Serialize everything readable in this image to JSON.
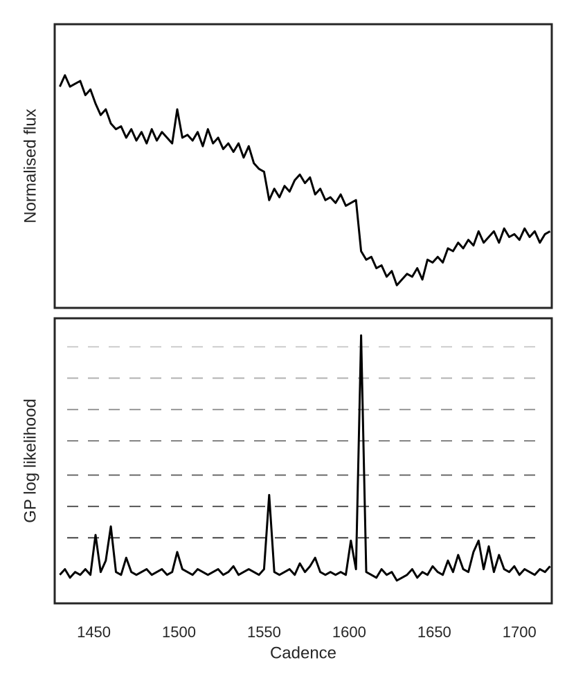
{
  "chart_data": [
    {
      "type": "line",
      "ylabel": "Normalised flux",
      "xlim": [
        1427,
        1719
      ],
      "ylim": [
        0,
        100
      ],
      "color": "#000000",
      "x": [
        1430,
        1433,
        1436,
        1439,
        1442,
        1445,
        1448,
        1451,
        1454,
        1457,
        1460,
        1463,
        1466,
        1469,
        1472,
        1475,
        1478,
        1481,
        1484,
        1487,
        1490,
        1493,
        1496,
        1499,
        1502,
        1505,
        1508,
        1511,
        1514,
        1517,
        1520,
        1523,
        1526,
        1529,
        1532,
        1535,
        1538,
        1541,
        1544,
        1547,
        1550,
        1553,
        1556,
        1559,
        1562,
        1565,
        1568,
        1571,
        1574,
        1577,
        1580,
        1583,
        1586,
        1589,
        1592,
        1595,
        1598,
        1601,
        1604,
        1607,
        1610,
        1613,
        1616,
        1619,
        1622,
        1625,
        1628,
        1631,
        1634,
        1637,
        1640,
        1643,
        1646,
        1649,
        1652,
        1655,
        1658,
        1661,
        1664,
        1667,
        1670,
        1673,
        1676,
        1679,
        1682,
        1685,
        1688,
        1691,
        1694,
        1697,
        1700,
        1703,
        1706,
        1709,
        1712,
        1715,
        1718
      ],
      "values": [
        78,
        82,
        78,
        79,
        80,
        75,
        77,
        72,
        68,
        70,
        65,
        63,
        64,
        60,
        63,
        59,
        62,
        58,
        63,
        59,
        62,
        60,
        58,
        70,
        60,
        61,
        59,
        62,
        57,
        63,
        58,
        60,
        56,
        58,
        55,
        58,
        53,
        57,
        51,
        49,
        48,
        38,
        42,
        39,
        43,
        41,
        45,
        47,
        44,
        46,
        40,
        42,
        38,
        39,
        37,
        40,
        36,
        37,
        38,
        20,
        17,
        18,
        14,
        15,
        11,
        13,
        8,
        10,
        12,
        11,
        14,
        10,
        17,
        16,
        18,
        16,
        21,
        20,
        23,
        21,
        24,
        22,
        27,
        23,
        25,
        27,
        23,
        28,
        25,
        26,
        24,
        28,
        25,
        27,
        23,
        26,
        27
      ]
    },
    {
      "type": "line",
      "ylabel": "GP log likelihood",
      "xlabel": "Cadence",
      "xlim": [
        1427,
        1719
      ],
      "ylim": [
        0,
        100
      ],
      "color": "#000000",
      "xticks": [
        1450,
        1500,
        1550,
        1600,
        1650,
        1700
      ],
      "hlines": [
        {
          "value": 23,
          "color": "#444444"
        },
        {
          "value": 34,
          "color": "#555555"
        },
        {
          "value": 45,
          "color": "#6a6a6a"
        },
        {
          "value": 57,
          "color": "#808080"
        },
        {
          "value": 68,
          "color": "#979797"
        },
        {
          "value": 79,
          "color": "#b0b0b0"
        },
        {
          "value": 90,
          "color": "#cccccc"
        }
      ],
      "x": [
        1430,
        1433,
        1436,
        1439,
        1442,
        1445,
        1448,
        1451,
        1454,
        1457,
        1460,
        1463,
        1466,
        1469,
        1472,
        1475,
        1478,
        1481,
        1484,
        1487,
        1490,
        1493,
        1496,
        1499,
        1502,
        1505,
        1508,
        1511,
        1514,
        1517,
        1520,
        1523,
        1526,
        1529,
        1532,
        1535,
        1538,
        1541,
        1544,
        1547,
        1550,
        1553,
        1556,
        1559,
        1562,
        1565,
        1568,
        1571,
        1574,
        1577,
        1580,
        1583,
        1586,
        1589,
        1592,
        1595,
        1598,
        1601,
        1604,
        1607,
        1610,
        1613,
        1616,
        1619,
        1622,
        1625,
        1628,
        1631,
        1634,
        1637,
        1640,
        1643,
        1646,
        1649,
        1652,
        1655,
        1658,
        1661,
        1664,
        1667,
        1670,
        1673,
        1676,
        1679,
        1682,
        1685,
        1688,
        1691,
        1694,
        1697,
        1700,
        1703,
        1706,
        1709,
        1712,
        1715,
        1718
      ],
      "values": [
        10,
        12,
        9,
        11,
        10,
        12,
        10,
        24,
        11,
        15,
        27,
        11,
        10,
        16,
        11,
        10,
        11,
        12,
        10,
        11,
        12,
        10,
        11,
        18,
        12,
        11,
        10,
        12,
        11,
        10,
        11,
        12,
        10,
        11,
        13,
        10,
        11,
        12,
        11,
        10,
        12,
        38,
        11,
        10,
        11,
        12,
        10,
        14,
        11,
        13,
        16,
        11,
        10,
        11,
        10,
        11,
        10,
        22,
        12,
        94,
        11,
        10,
        9,
        12,
        10,
        11,
        8,
        9,
        10,
        12,
        9,
        11,
        10,
        13,
        11,
        10,
        15,
        11,
        17,
        12,
        11,
        18,
        22,
        12,
        20,
        11,
        17,
        12,
        11,
        13,
        10,
        12,
        11,
        10,
        12,
        11,
        13
      ]
    }
  ]
}
